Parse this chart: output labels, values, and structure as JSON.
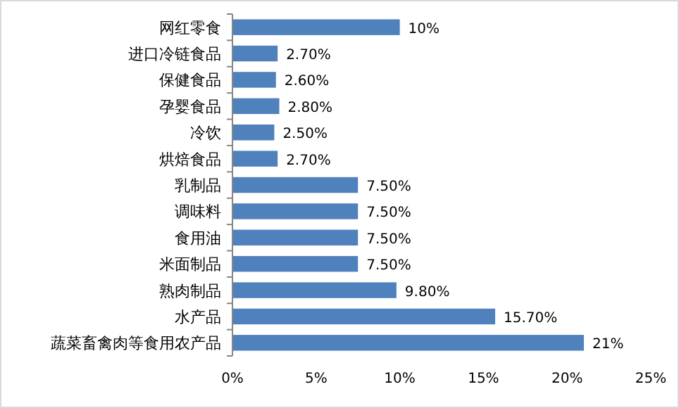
{
  "chart_data": {
    "type": "bar",
    "orientation": "horizontal",
    "categories": [
      "网红零食",
      "进口冷链食品",
      "保健食品",
      "孕婴食品",
      "冷饮",
      "烘焙食品",
      "乳制品",
      "调味料",
      "食用油",
      "米面制品",
      "熟肉制品",
      "水产品",
      "蔬菜畜禽肉等食用农产品"
    ],
    "values": [
      10,
      2.7,
      2.6,
      2.8,
      2.5,
      2.7,
      7.5,
      7.5,
      7.5,
      7.5,
      9.8,
      15.7,
      21
    ],
    "value_labels": [
      "10%",
      "2.70%",
      "2.60%",
      "2.80%",
      "2.50%",
      "2.70%",
      "7.50%",
      "7.50%",
      "7.50%",
      "7.50%",
      "9.80%",
      "15.70%",
      "21%"
    ],
    "color": "#4f81bd",
    "xlim": [
      0,
      25
    ],
    "xticks": [
      {
        "value": 0,
        "label": "0%"
      },
      {
        "value": 5,
        "label": "5%"
      },
      {
        "value": 10,
        "label": "10%"
      },
      {
        "value": 15,
        "label": "15%"
      },
      {
        "value": 20,
        "label": "20%"
      },
      {
        "value": 25,
        "label": "25%"
      }
    ],
    "grid": false
  }
}
